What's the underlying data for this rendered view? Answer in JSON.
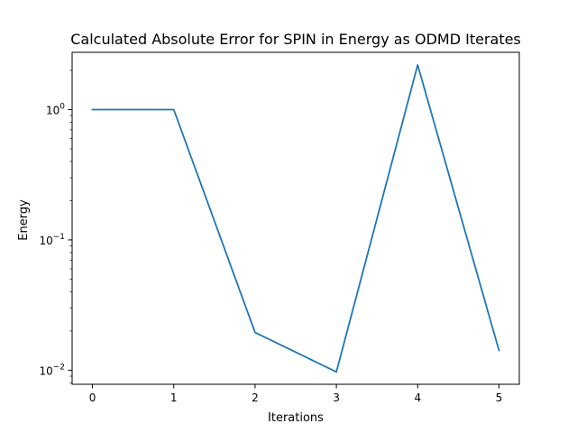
{
  "chart_data": {
    "type": "line",
    "title": "Calculated Absolute Error for SPIN in Energy as ODMD Iterates",
    "xlabel": "Iterations",
    "ylabel": "Energy",
    "yscale": "log",
    "xlim": [
      -0.25,
      5.25
    ],
    "ylim": [
      0.0078,
      2.75
    ],
    "xticks": [
      0,
      1,
      2,
      3,
      4,
      5
    ],
    "yticks": [
      {
        "value": 0.01,
        "base": "10",
        "exponent": "−2"
      },
      {
        "value": 0.1,
        "base": "10",
        "exponent": "−1"
      },
      {
        "value": 1,
        "base": "10",
        "exponent": "0"
      }
    ],
    "grid": false,
    "series": [
      {
        "color": "#1f77b4",
        "x": [
          0,
          1,
          2,
          3,
          4,
          5
        ],
        "y": [
          1.0,
          1.0,
          0.0195,
          0.0097,
          2.2,
          0.0142
        ]
      }
    ]
  }
}
